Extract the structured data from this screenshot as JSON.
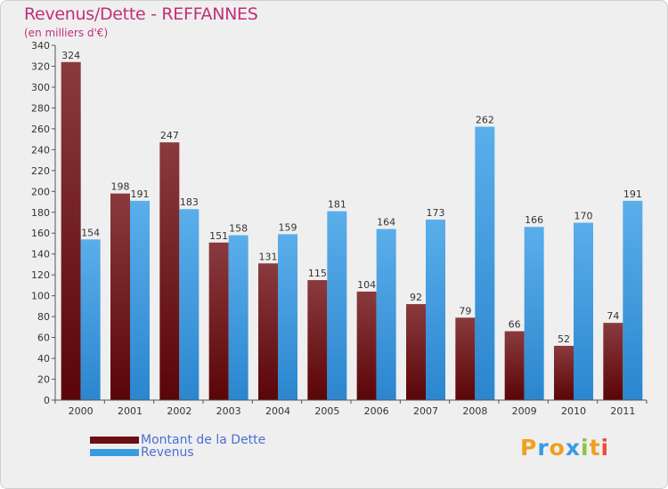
{
  "title": "Revenus/Dette - REFFANNES",
  "subtitle": "(en milliers d'€)",
  "colors": {
    "dette": "#6b0f12",
    "revenus": "#3a9be0",
    "title": "#c0307a",
    "legend_text": "#4a6fd6"
  },
  "legend": [
    {
      "label": "Montant de la Dette",
      "color": "#6b0f12"
    },
    {
      "label": "Revenus",
      "color": "#3a9be0"
    }
  ],
  "logo": {
    "text": "Proxiti",
    "letters": [
      {
        "ch": "P",
        "color": "#f0a020"
      },
      {
        "ch": "r",
        "color": "#3a9be0"
      },
      {
        "ch": "o",
        "color": "#f0a020"
      },
      {
        "ch": "x",
        "color": "#3a9be0"
      },
      {
        "ch": "i",
        "color": "#8bc34a"
      },
      {
        "ch": "t",
        "color": "#f0a020"
      },
      {
        "ch": "i",
        "color": "#e94e3c"
      }
    ]
  },
  "chart_data": {
    "type": "bar",
    "title": "Revenus/Dette - REFFANNES",
    "subtitle": "(en milliers d'€)",
    "categories": [
      "2000",
      "2001",
      "2002",
      "2003",
      "2004",
      "2005",
      "2006",
      "2007",
      "2008",
      "2009",
      "2010",
      "2011"
    ],
    "series": [
      {
        "name": "Montant de la Dette",
        "values": [
          324,
          198,
          247,
          151,
          131,
          115,
          104,
          92,
          79,
          66,
          52,
          74
        ]
      },
      {
        "name": "Revenus",
        "values": [
          154,
          191,
          183,
          158,
          159,
          181,
          164,
          173,
          262,
          166,
          170,
          191
        ]
      }
    ],
    "ylim": [
      0,
      340
    ],
    "ytick_step": 20,
    "grid": false,
    "legend_position": "bottom-left"
  }
}
